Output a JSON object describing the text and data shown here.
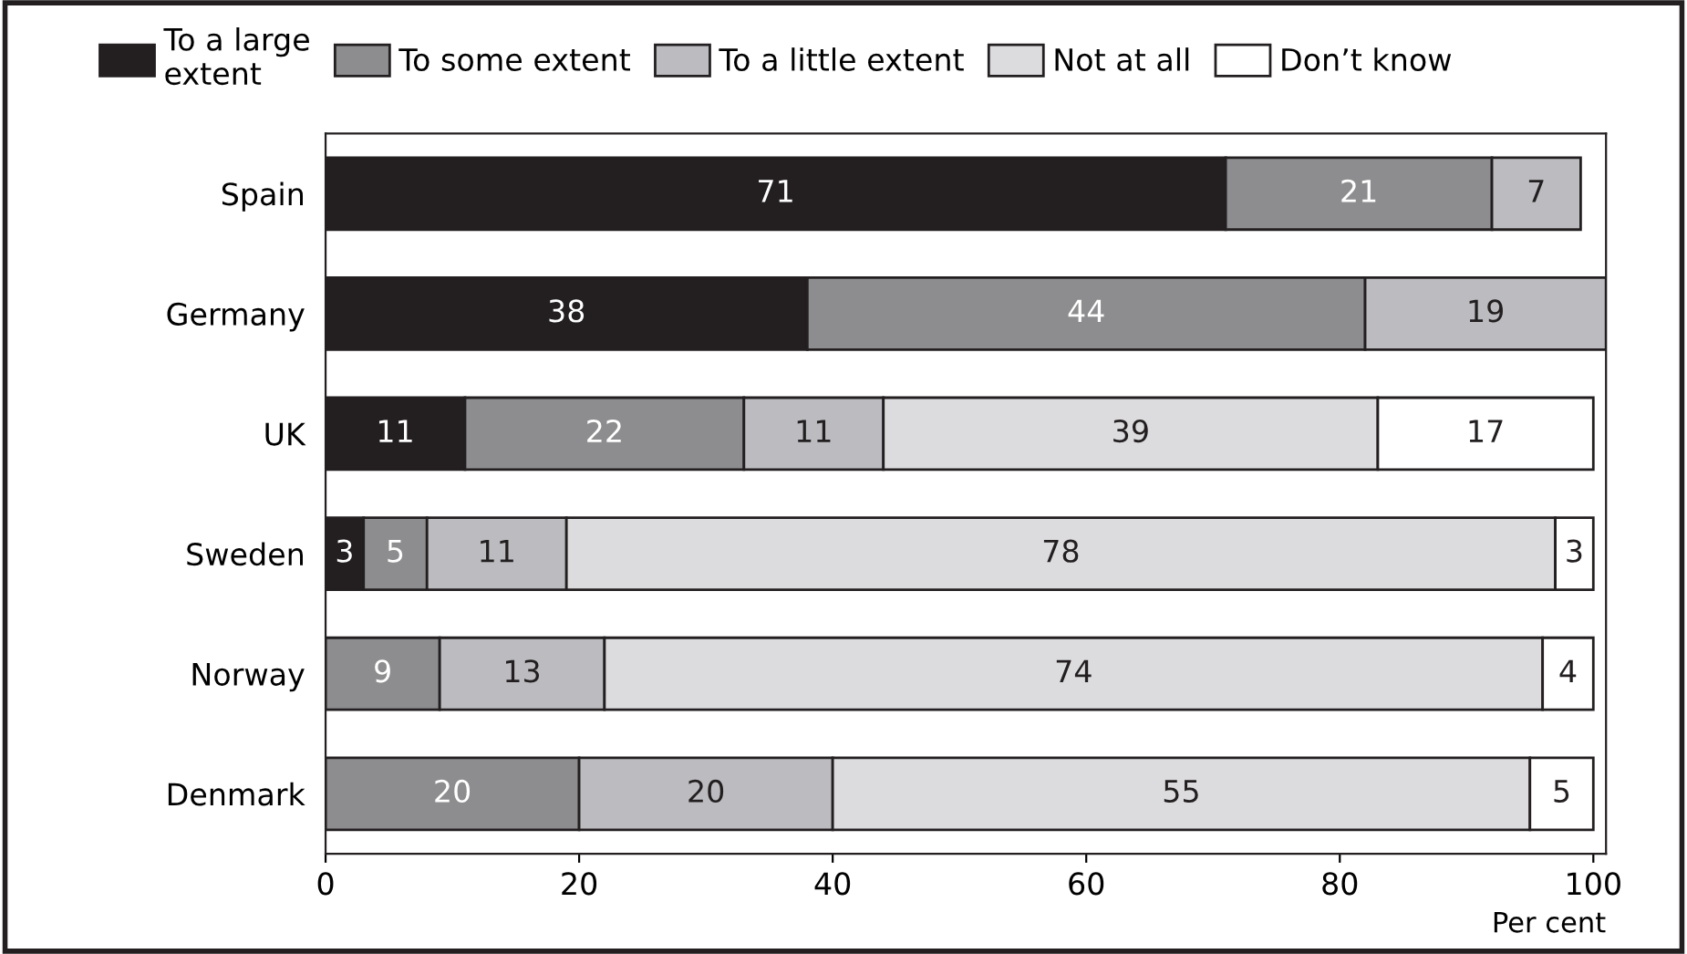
{
  "chart_data": {
    "type": "bar",
    "orientation": "horizontal",
    "stacked": true,
    "xlabel": "Per cent",
    "categories": [
      "Spain",
      "Germany",
      "UK",
      "Sweden",
      "Norway",
      "Denmark"
    ],
    "series": [
      {
        "name": "To a large\nextent",
        "color": "#231f20",
        "values": [
          71,
          38,
          11,
          3,
          null,
          null
        ]
      },
      {
        "name": "To some extent",
        "color": "#8d8d8f",
        "values": [
          21,
          44,
          22,
          5,
          9,
          20
        ]
      },
      {
        "name": "To a little extent",
        "color": "#bcbcc0",
        "values": [
          7,
          19,
          11,
          11,
          13,
          20
        ]
      },
      {
        "name": "Not at all",
        "color": "#dcdcde",
        "values": [
          null,
          null,
          39,
          78,
          74,
          55
        ]
      },
      {
        "name": "Don’t know",
        "color": "#ffffff",
        "values": [
          null,
          null,
          17,
          3,
          4,
          5
        ]
      }
    ],
    "xlim": [
      0,
      101
    ],
    "xticks": [
      0,
      20,
      40,
      60,
      80,
      100
    ],
    "grid": false,
    "legend": "top",
    "data_labels": true
  }
}
